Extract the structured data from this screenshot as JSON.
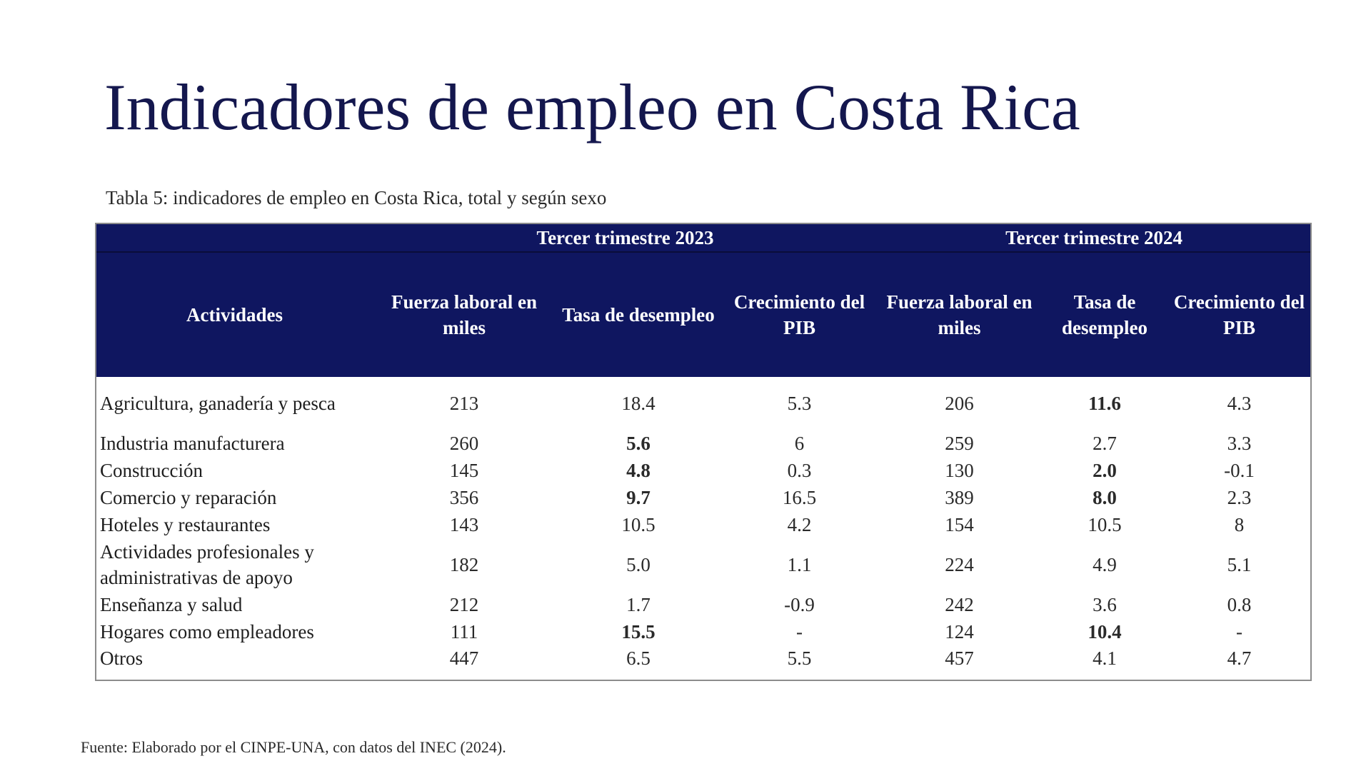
{
  "title": "Indicadores de empleo en Costa Rica",
  "table_caption": "Tabla 5: indicadores de empleo en Costa Rica, total y según sexo",
  "table": {
    "group_headers": [
      "Tercer trimestre 2023",
      "Tercer trimestre 2024"
    ],
    "columns": [
      "Actividades",
      "Fuerza laboral en miles",
      "Tasa de desempleo",
      "Crecimiento del PIB",
      "Fuerza laboral en miles",
      "Tasa de desempleo",
      "Crecimiento del PIB"
    ],
    "rows": [
      {
        "activity": "Agricultura, ganadería y pesca",
        "fl_2023": "213",
        "td_2023": "18.4",
        "pib_2023": "5.3",
        "fl_2024": "206",
        "td_2024": "11.6",
        "pib_2024": "4.3"
      },
      {
        "activity": "Industria manufacturera",
        "fl_2023": "260",
        "td_2023": "5.6",
        "pib_2023": "6",
        "fl_2024": "259",
        "td_2024": "2.7",
        "pib_2024": "3.3"
      },
      {
        "activity": "Construcción",
        "fl_2023": "145",
        "td_2023": "4.8",
        "pib_2023": "0.3",
        "fl_2024": "130",
        "td_2024": "2.0",
        "pib_2024": "-0.1"
      },
      {
        "activity": "Comercio y reparación",
        "fl_2023": "356",
        "td_2023": "9.7",
        "pib_2023": "16.5",
        "fl_2024": "389",
        "td_2024": "8.0",
        "pib_2024": "2.3"
      },
      {
        "activity": "Hoteles y restaurantes",
        "fl_2023": "143",
        "td_2023": "10.5",
        "pib_2023": "4.2",
        "fl_2024": "154",
        "td_2024": "10.5",
        "pib_2024": "8"
      },
      {
        "activity": "Actividades profesionales y administrativas de apoyo",
        "fl_2023": "182",
        "td_2023": "5.0",
        "pib_2023": "1.1",
        "fl_2024": "224",
        "td_2024": "4.9",
        "pib_2024": "5.1"
      },
      {
        "activity": "Enseñanza y salud",
        "fl_2023": "212",
        "td_2023": "1.7",
        "pib_2023": "-0.9",
        "fl_2024": "242",
        "td_2024": "3.6",
        "pib_2024": "0.8"
      },
      {
        "activity": "Hogares como empleadores",
        "fl_2023": "111",
        "td_2023": "15.5",
        "pib_2023": "-",
        "fl_2024": "124",
        "td_2024": "10.4",
        "pib_2024": "-"
      },
      {
        "activity": "Otros",
        "fl_2023": "447",
        "td_2023": "6.5",
        "pib_2023": "5.5",
        "fl_2024": "457",
        "td_2024": "4.1",
        "pib_2024": "4.7"
      }
    ]
  },
  "colors": {
    "title": "#14174e",
    "header_background": "#0f1660",
    "highlight_red": "#c8143c",
    "highlight_green": "#22b54e",
    "highlight_blue": "#3d86c6"
  },
  "source_note": "Fuente: Elaborado por el CINPE-UNA, con datos del INEC (2024)."
}
